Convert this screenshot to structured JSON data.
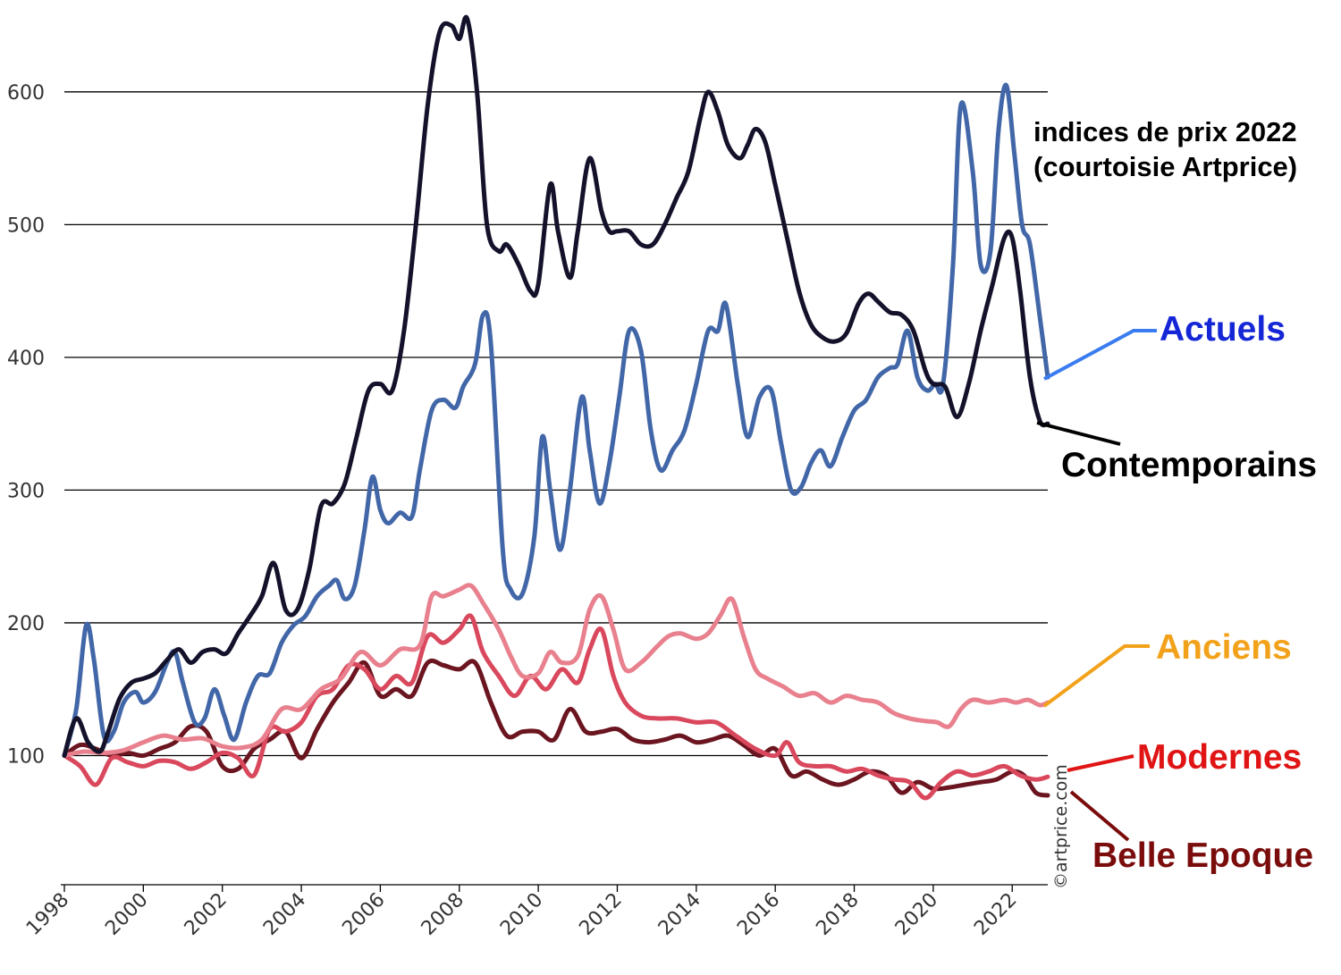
{
  "chart_data": {
    "type": "line",
    "title": "indices de prix 2022",
    "subtitle": "(courtoisie Artprice)",
    "credit": "©artprice.com",
    "xlabel": "",
    "ylabel": "",
    "xlim": [
      1998,
      2022.9
    ],
    "ylim": [
      0,
      660
    ],
    "yticks": [
      100,
      200,
      300,
      400,
      500,
      600
    ],
    "xticks": [
      1998,
      2000,
      2002,
      2004,
      2006,
      2008,
      2010,
      2012,
      2014,
      2016,
      2018,
      2020,
      2022
    ],
    "grid": "horizontal",
    "legend": "right, inline labels",
    "series": [
      {
        "name": "Contemporains",
        "color": "#14122b",
        "label_color": "#000000",
        "leader_color": "#000000",
        "x": [
          1998,
          1998.3,
          1998.6,
          1998.9,
          1999.1,
          1999.4,
          1999.7,
          2000,
          2000.3,
          2000.6,
          2000.9,
          2001.2,
          2001.5,
          2001.8,
          2002.1,
          2002.4,
          2002.7,
          2003,
          2003.3,
          2003.6,
          2003.9,
          2004.2,
          2004.5,
          2004.8,
          2005.1,
          2005.4,
          2005.7,
          2006,
          2006.3,
          2006.6,
          2006.9,
          2007.2,
          2007.5,
          2007.8,
          2008,
          2008.2,
          2008.45,
          2008.7,
          2009,
          2009.2,
          2009.5,
          2009.8,
          2010,
          2010.3,
          2010.5,
          2010.8,
          2011,
          2011.3,
          2011.6,
          2011.8,
          2012,
          2012.3,
          2012.6,
          2012.9,
          2013.2,
          2013.5,
          2013.8,
          2014.1,
          2014.3,
          2014.55,
          2014.8,
          2015.1,
          2015.3,
          2015.5,
          2015.75,
          2016,
          2016.3,
          2016.6,
          2016.9,
          2017.2,
          2017.5,
          2017.8,
          2018.1,
          2018.35,
          2018.6,
          2018.9,
          2019.2,
          2019.5,
          2019.8,
          2020,
          2020.3,
          2020.6,
          2020.9,
          2021.2,
          2021.5,
          2021.8,
          2022,
          2022.2,
          2022.45,
          2022.7,
          2022.9
        ],
        "values": [
          100,
          128,
          110,
          103,
          117,
          143,
          155,
          158,
          162,
          172,
          180,
          170,
          178,
          180,
          177,
          192,
          205,
          220,
          245,
          210,
          210,
          240,
          288,
          290,
          305,
          340,
          375,
          380,
          375,
          420,
          500,
          590,
          645,
          650,
          640,
          655,
          600,
          500,
          480,
          485,
          470,
          450,
          455,
          530,
          495,
          460,
          495,
          550,
          510,
          495,
          495,
          495,
          485,
          485,
          500,
          520,
          540,
          580,
          600,
          585,
          560,
          550,
          560,
          572,
          562,
          530,
          490,
          450,
          425,
          415,
          412,
          418,
          440,
          448,
          442,
          434,
          432,
          420,
          390,
          380,
          378,
          355,
          380,
          420,
          455,
          490,
          490,
          450,
          385,
          352,
          350
        ]
      },
      {
        "name": "Actuels",
        "color": "#4267a8",
        "label_color": "#1426d6",
        "leader_color": "#3a7cf0",
        "x": [
          1998,
          1998.3,
          1998.55,
          1998.75,
          1999,
          1999.25,
          1999.5,
          1999.8,
          2000,
          2000.3,
          2000.6,
          2000.8,
          2001,
          2001.3,
          2001.55,
          2001.8,
          2002.05,
          2002.3,
          2002.6,
          2002.9,
          2003.2,
          2003.5,
          2003.8,
          2004.1,
          2004.4,
          2004.7,
          2004.9,
          2005.1,
          2005.35,
          2005.6,
          2005.8,
          2006,
          2006.2,
          2006.5,
          2006.8,
          2007,
          2007.3,
          2007.6,
          2007.9,
          2008.1,
          2008.4,
          2008.6,
          2008.8,
          2009.1,
          2009.3,
          2009.6,
          2009.9,
          2010.1,
          2010.3,
          2010.55,
          2010.8,
          2011.1,
          2011.3,
          2011.55,
          2011.8,
          2012.05,
          2012.3,
          2012.6,
          2012.85,
          2013.1,
          2013.4,
          2013.7,
          2014,
          2014.3,
          2014.55,
          2014.75,
          2015.05,
          2015.3,
          2015.6,
          2015.9,
          2016.15,
          2016.4,
          2016.65,
          2016.9,
          2017.15,
          2017.4,
          2017.7,
          2018,
          2018.3,
          2018.6,
          2018.9,
          2019.1,
          2019.35,
          2019.6,
          2019.85,
          2020.05,
          2020.25,
          2020.5,
          2020.7,
          2021,
          2021.2,
          2021.45,
          2021.65,
          2021.85,
          2022.05,
          2022.25,
          2022.45,
          2022.7,
          2022.9
        ],
        "values": [
          100,
          135,
          198,
          172,
          115,
          118,
          140,
          148,
          140,
          148,
          170,
          178,
          155,
          125,
          128,
          150,
          130,
          112,
          140,
          160,
          162,
          185,
          198,
          205,
          220,
          228,
          232,
          218,
          228,
          270,
          310,
          285,
          275,
          283,
          280,
          315,
          360,
          368,
          362,
          378,
          395,
          432,
          410,
          255,
          225,
          222,
          265,
          340,
          300,
          255,
          300,
          370,
          330,
          290,
          320,
          370,
          420,
          405,
          345,
          315,
          330,
          345,
          380,
          420,
          420,
          440,
          380,
          340,
          370,
          375,
          335,
          300,
          302,
          320,
          330,
          318,
          340,
          360,
          368,
          385,
          392,
          395,
          420,
          385,
          375,
          380,
          380,
          470,
          590,
          540,
          470,
          480,
          570,
          605,
          555,
          500,
          485,
          430,
          385
        ]
      },
      {
        "name": "Anciens",
        "color": "#e8808e",
        "label_color": "#f2a21a",
        "leader_color": "#f2a21a",
        "x": [
          1998,
          1998.5,
          1999,
          1999.5,
          2000,
          2000.5,
          2001,
          2001.5,
          2002,
          2002.5,
          2003,
          2003.5,
          2004,
          2004.5,
          2005,
          2005.5,
          2006,
          2006.5,
          2007,
          2007.3,
          2007.6,
          2008,
          2008.3,
          2008.6,
          2009,
          2009.3,
          2009.6,
          2010,
          2010.3,
          2010.6,
          2011,
          2011.3,
          2011.6,
          2011.9,
          2012.2,
          2012.6,
          2013,
          2013.3,
          2013.6,
          2014,
          2014.3,
          2014.6,
          2014.9,
          2015.2,
          2015.5,
          2015.8,
          2016.2,
          2016.6,
          2017,
          2017.4,
          2017.8,
          2018.2,
          2018.6,
          2019,
          2019.4,
          2019.8,
          2020.1,
          2020.4,
          2020.7,
          2021,
          2021.4,
          2021.8,
          2022.1,
          2022.4,
          2022.7,
          2022.9
        ],
        "values": [
          100,
          103,
          102,
          104,
          110,
          115,
          112,
          113,
          107,
          106,
          112,
          135,
          135,
          150,
          158,
          178,
          168,
          180,
          183,
          220,
          220,
          225,
          228,
          215,
          195,
          175,
          160,
          162,
          178,
          170,
          175,
          210,
          220,
          195,
          165,
          170,
          182,
          190,
          192,
          188,
          192,
          205,
          218,
          190,
          165,
          158,
          152,
          145,
          147,
          140,
          145,
          142,
          140,
          132,
          128,
          126,
          125,
          122,
          135,
          142,
          140,
          142,
          140,
          142,
          138,
          140
        ]
      },
      {
        "name": "Modernes",
        "color": "#d9485c",
        "label_color": "#e01414",
        "leader_color": "#e01414",
        "x": [
          1998,
          1998.4,
          1998.8,
          1999.2,
          1999.6,
          2000,
          2000.4,
          2000.8,
          2001.2,
          2001.6,
          2002,
          2002.4,
          2002.8,
          2003.2,
          2003.6,
          2004,
          2004.4,
          2004.8,
          2005.2,
          2005.6,
          2006,
          2006.4,
          2006.8,
          2007.2,
          2007.6,
          2008,
          2008.3,
          2008.6,
          2009,
          2009.4,
          2009.8,
          2010.2,
          2010.6,
          2011,
          2011.3,
          2011.6,
          2011.9,
          2012.2,
          2012.6,
          2013,
          2013.5,
          2014,
          2014.5,
          2015,
          2015.5,
          2016,
          2016.3,
          2016.6,
          2017,
          2017.4,
          2017.8,
          2018.2,
          2018.6,
          2019,
          2019.4,
          2019.8,
          2020.2,
          2020.6,
          2021,
          2021.4,
          2021.8,
          2022.2,
          2022.6,
          2022.9
        ],
        "values": [
          100,
          92,
          78,
          98,
          95,
          92,
          96,
          95,
          90,
          95,
          102,
          98,
          85,
          120,
          118,
          125,
          145,
          150,
          168,
          165,
          150,
          160,
          155,
          190,
          185,
          195,
          205,
          178,
          160,
          145,
          160,
          150,
          165,
          155,
          180,
          195,
          160,
          140,
          130,
          128,
          128,
          125,
          125,
          115,
          105,
          100,
          110,
          95,
          92,
          92,
          88,
          90,
          85,
          82,
          80,
          68,
          80,
          88,
          85,
          88,
          92,
          85,
          82,
          84
        ]
      },
      {
        "name": "Belle Epoque",
        "color": "#6b1520",
        "label_color": "#7b0c0c",
        "leader_color": "#7b0c0c",
        "x": [
          1998,
          1998.4,
          1998.8,
          1999.2,
          1999.6,
          2000,
          2000.4,
          2000.8,
          2001.2,
          2001.6,
          2002,
          2002.4,
          2002.8,
          2003.2,
          2003.6,
          2004,
          2004.4,
          2004.8,
          2005.2,
          2005.6,
          2006,
          2006.4,
          2006.8,
          2007.2,
          2007.6,
          2008,
          2008.4,
          2008.8,
          2009.2,
          2009.6,
          2010,
          2010.4,
          2010.8,
          2011.2,
          2011.6,
          2012,
          2012.4,
          2012.8,
          2013.2,
          2013.6,
          2014,
          2014.4,
          2014.8,
          2015.2,
          2015.6,
          2016,
          2016.4,
          2016.8,
          2017.2,
          2017.6,
          2018,
          2018.4,
          2018.8,
          2019.2,
          2019.6,
          2020,
          2020.4,
          2020.8,
          2021.2,
          2021.6,
          2022,
          2022.3,
          2022.6,
          2022.9
        ],
        "values": [
          100,
          108,
          105,
          100,
          102,
          100,
          105,
          110,
          122,
          118,
          92,
          90,
          105,
          112,
          118,
          98,
          120,
          140,
          155,
          170,
          145,
          150,
          145,
          170,
          168,
          165,
          170,
          140,
          115,
          118,
          118,
          112,
          135,
          118,
          118,
          120,
          112,
          110,
          112,
          115,
          110,
          112,
          115,
          108,
          100,
          105,
          85,
          88,
          82,
          78,
          82,
          88,
          85,
          72,
          80,
          75,
          76,
          78,
          80,
          82,
          88,
          85,
          72,
          70
        ]
      }
    ],
    "label_positions": [
      "Actuels",
      "Anciens",
      "Modernes",
      "Belle Epoque",
      "Contemporains"
    ]
  }
}
